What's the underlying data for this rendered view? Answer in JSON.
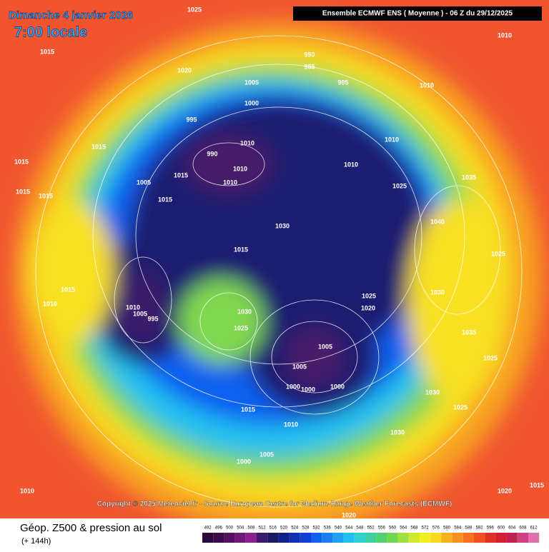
{
  "header": {
    "date": "Dimanche 4 janvier 2026",
    "time": "7:00 locale",
    "model": "Ensemble ECMWF ENS  ( Moyenne )  -  06 Z du 29/12/2025"
  },
  "map": {
    "pressure_labels": [
      "1025",
      "1010",
      "1015",
      "1020",
      "990",
      "985",
      "995",
      "1005",
      "1000",
      "1010",
      "995",
      "1010",
      "1015",
      "1010",
      "1015",
      "990",
      "1010",
      "1005",
      "1015",
      "1010",
      "1010",
      "1015",
      "1015",
      "1015",
      "1025",
      "1035",
      "1030",
      "1040",
      "1015",
      "1025",
      "1015",
      "1030",
      "1010",
      "1025",
      "1020",
      "1010",
      "1005",
      "995",
      "1030",
      "1025",
      "1035",
      "1005",
      "1005",
      "1000",
      "1000",
      "1000",
      "1025",
      "1030",
      "1015",
      "1025",
      "1010",
      "1030",
      "1005",
      "1000",
      "1010",
      "1015",
      "1020",
      "1020"
    ],
    "copyright": "Copyright © 2025 Meteociel.fr - Source European Centre for Medium-Range Weather Forecasts (ECMWF)"
  },
  "footer": {
    "title": "Géop. Z500 & pression au sol",
    "lead": "(+ 144h)"
  },
  "scale": {
    "values": [
      492,
      496,
      500,
      504,
      508,
      512,
      516,
      520,
      524,
      528,
      532,
      536,
      540,
      544,
      548,
      552,
      556,
      560,
      564,
      568,
      572,
      576,
      580,
      584,
      588,
      592,
      596,
      600,
      604,
      608,
      612
    ],
    "colors": [
      "#2a0a3a",
      "#3d0a4a",
      "#55105e",
      "#701878",
      "#8a2090",
      "#3a1a6a",
      "#1a1a60",
      "#10208a",
      "#1030b0",
      "#1040d0",
      "#1060f0",
      "#1a80f0",
      "#20a0f0",
      "#20c0f0",
      "#30d0d0",
      "#40d0a0",
      "#50d070",
      "#70d850",
      "#a0e040",
      "#d0e830",
      "#f0f020",
      "#f8d820",
      "#f8b020",
      "#f89020",
      "#f87020",
      "#f05020",
      "#e03020",
      "#d02030",
      "#c02050",
      "#d04080",
      "#e070b0"
    ]
  }
}
